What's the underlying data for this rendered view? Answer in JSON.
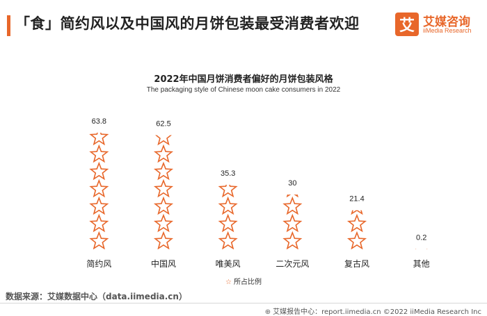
{
  "header": {
    "headline": "「食」简约风以及中国风的月饼包装最受消费者欢迎"
  },
  "brand": {
    "logo_glyph": "艾",
    "name": "艾媒咨询",
    "sub": "iiMedia Research",
    "color": "#e8672a"
  },
  "chart_data": {
    "type": "bar",
    "title": "2022年中国月饼消费者偏好的月饼包装风格",
    "subtitle": "The packaging style of Chinese moon cake consumers in 2022",
    "categories": [
      "简约风",
      "中国风",
      "唯美风",
      "二次元风",
      "复古风",
      "其他"
    ],
    "series": [
      {
        "name": "所占比例",
        "values": [
          63.8,
          62.5,
          35.3,
          30,
          21.4,
          0.2
        ]
      }
    ],
    "value_labels": [
      "63.8",
      "62.5",
      "35.3",
      "30",
      "21.4",
      "0.2"
    ],
    "ylim": [
      0,
      65
    ],
    "marker": "star-outline",
    "color": "#e8672a",
    "grid": false,
    "legend_position": "bottom"
  },
  "legend": {
    "icon": "star-icon",
    "label": "所占比例"
  },
  "source": {
    "text": "数据来源：艾媒数据中心（data.iimedia.cn）"
  },
  "footer": {
    "icon": "globe-icon",
    "text": "艾媒报告中心：report.iimedia.cn  ©2022  iiMedia Research  Inc"
  }
}
